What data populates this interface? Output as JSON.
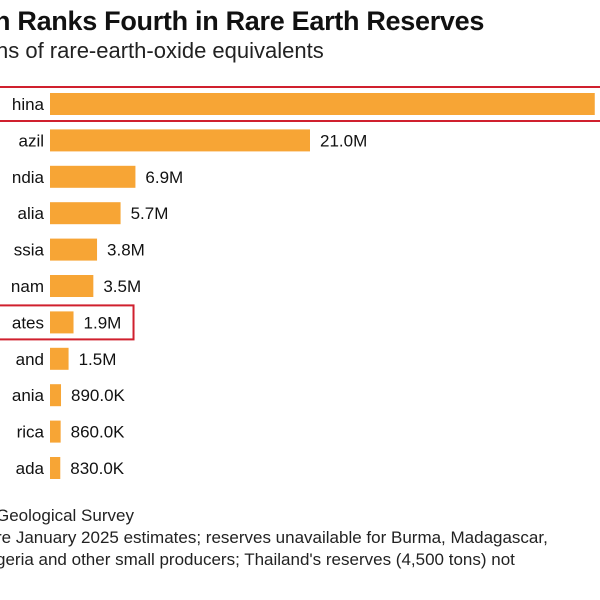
{
  "header": {
    "title": "n Ranks Fourth in Rare Earth Reserves",
    "subtitle": "ns of rare-earth-oxide equivalents"
  },
  "chart_data": {
    "type": "bar",
    "orientation": "horizontal",
    "title": "n Ranks Fourth in Rare Earth Reserves",
    "subtitle": "ns of rare-earth-oxide equivalents",
    "categories": [
      "hina",
      "azil",
      "ndia",
      "alia",
      "ssia",
      "nam",
      "ates",
      "and",
      "ania",
      "rica",
      "ada"
    ],
    "values": [
      44000000,
      21000000,
      6900000,
      5700000,
      3800000,
      3500000,
      1900000,
      1500000,
      890000,
      860000,
      830000
    ],
    "data_labels": [
      "",
      "21.0M",
      "6.9M",
      "5.7M",
      "3.8M",
      "3.5M",
      "1.9M",
      "1.5M",
      "890.0K",
      "860.0K",
      "830.0K"
    ],
    "highlighted": [
      "hina",
      "ates"
    ],
    "bar_color": "#f7a535",
    "highlight_color": "#d0202e",
    "grid": false,
    "legend": "none"
  },
  "footer": {
    "source": "Geological Survey",
    "note_line1": "re January 2025 estimates; reserves unavailable for Burma, Madagascar,",
    "note_line2": "geria and other small producers; Thailand's reserves (4,500 tons) not"
  }
}
